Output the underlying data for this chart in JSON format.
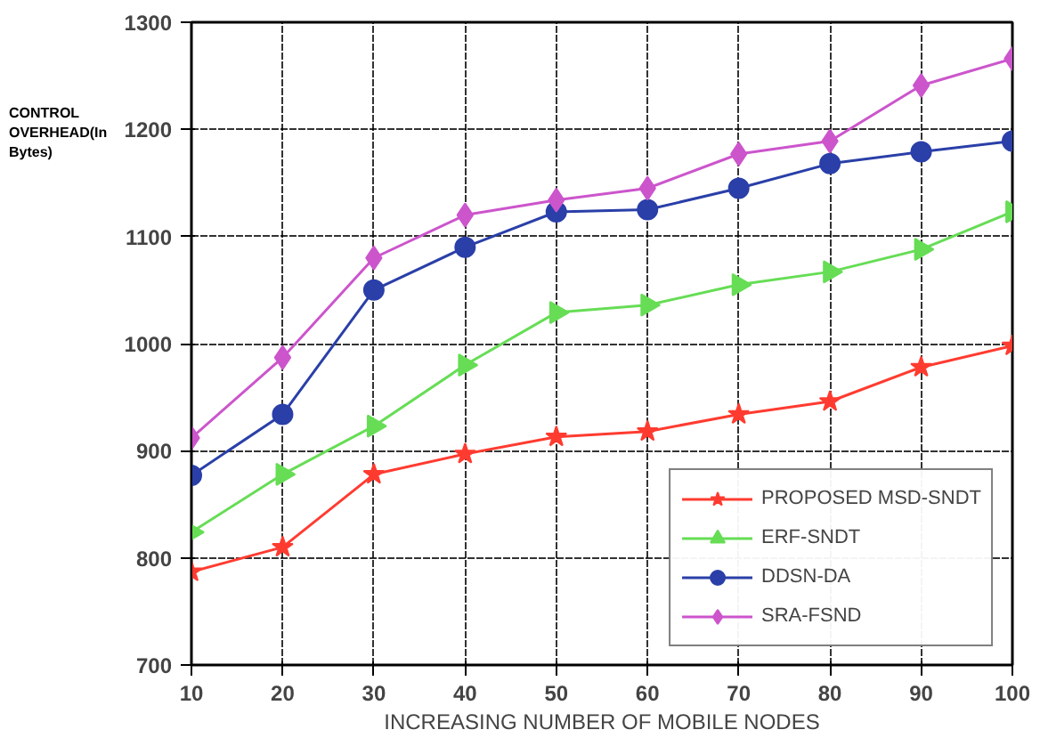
{
  "chart_data": {
    "type": "line",
    "xlabel": "INCREASING NUMBER OF MOBILE NODES",
    "ylabel": "CONTROL OVERHEAD(In Bytes)",
    "x": [
      10,
      20,
      30,
      40,
      50,
      60,
      70,
      80,
      90,
      100
    ],
    "series": [
      {
        "name": "PROPOSED MSD-SNDT",
        "color": "#ff3b30",
        "marker": "star",
        "values": [
          787,
          810,
          878,
          897,
          913,
          918,
          934,
          946,
          978,
          998
        ]
      },
      {
        "name": "ERF-SNDT",
        "color": "#66dd55",
        "marker": "triangle",
        "values": [
          824,
          878,
          923,
          980,
          1029,
          1036,
          1055,
          1067,
          1088,
          1123
        ]
      },
      {
        "name": "DDSN-DA",
        "color": "#2a3fa8",
        "marker": "circle",
        "values": [
          877,
          934,
          1050,
          1090,
          1123,
          1125,
          1145,
          1168,
          1179,
          1189
        ]
      },
      {
        "name": "SRA-FSND",
        "color": "#cc55cc",
        "marker": "diamond",
        "values": [
          912,
          987,
          1080,
          1120,
          1134,
          1145,
          1177,
          1189,
          1241,
          1266
        ]
      }
    ],
    "xlim": [
      10,
      100
    ],
    "ylim": [
      700,
      1300
    ],
    "xticks": [
      10,
      20,
      30,
      40,
      50,
      60,
      70,
      80,
      90,
      100
    ],
    "yticks": [
      700,
      800,
      900,
      1000,
      1100,
      1200,
      1300
    ],
    "grid": true,
    "legend": "bottom right",
    "line_style": "solid"
  }
}
